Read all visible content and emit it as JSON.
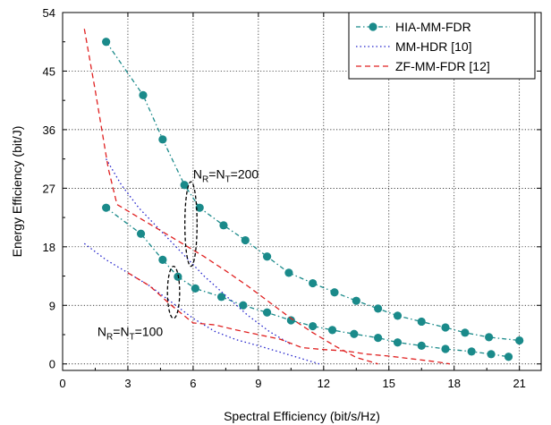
{
  "chart_data": {
    "type": "line",
    "xlabel": "Spectral Efficiency (bit/s/Hz)",
    "ylabel": "Energy Efficiency (bit/J)",
    "xlim": [
      0,
      22
    ],
    "ylim": [
      -1,
      54
    ],
    "xticks": [
      0,
      3,
      6,
      9,
      12,
      15,
      18,
      21
    ],
    "yticks": [
      0,
      9,
      18,
      27,
      36,
      45,
      54
    ],
    "grid": true,
    "legend_position": "top-right",
    "series": [
      {
        "name": "HIA-MM-FDR",
        "color": "#1a8a8a",
        "dash": "dashdot",
        "marker": "circle",
        "x": [
          2.0,
          3.7,
          4.6,
          5.6,
          6.3,
          7.4,
          8.4,
          9.4,
          10.4,
          11.5,
          12.5,
          13.5,
          14.5,
          15.4,
          16.5,
          17.6,
          18.5,
          19.6,
          21.0
        ],
        "y": [
          49.5,
          41.3,
          34.5,
          27.5,
          24.0,
          21.3,
          19.0,
          16.5,
          14.0,
          12.4,
          11.0,
          9.7,
          8.5,
          7.4,
          6.5,
          5.6,
          4.8,
          4.1,
          3.6
        ]
      },
      {
        "name": "",
        "color": "#1a8a8a",
        "dash": "dashdot",
        "marker": "circle",
        "x": [
          2.0,
          3.6,
          4.6,
          5.3,
          6.1,
          7.3,
          8.3,
          9.4,
          10.5,
          11.5,
          12.4,
          13.4,
          14.5,
          15.4,
          16.5,
          17.6,
          18.8,
          19.7,
          20.5
        ],
        "y": [
          24.0,
          20.0,
          16.0,
          13.4,
          11.6,
          10.3,
          9.0,
          7.9,
          6.7,
          5.8,
          5.2,
          4.6,
          4.0,
          3.3,
          2.8,
          2.3,
          1.9,
          1.5,
          1.1
        ]
      },
      {
        "name": "MM-HDR [10]",
        "color": "#2323cc",
        "dash": "dot",
        "marker": "none",
        "x": [
          2.0,
          2.7,
          3.5,
          4.5,
          5.5,
          6.5,
          7.5,
          8.5,
          9.5,
          10.5
        ],
        "y": [
          31.5,
          27.5,
          24.0,
          20.5,
          17.0,
          13.5,
          10.5,
          7.5,
          5.0,
          3.0
        ]
      },
      {
        "name": "",
        "color": "#2323cc",
        "dash": "dot",
        "marker": "none",
        "x": [
          1.0,
          2.0,
          3.0,
          4.0,
          5.0,
          6.0,
          7.0,
          8.0,
          9.0,
          10.0,
          11.0,
          11.8
        ],
        "y": [
          18.5,
          16.0,
          14.0,
          12.0,
          9.5,
          7.0,
          5.0,
          3.7,
          2.8,
          1.8,
          0.8,
          0.0
        ]
      },
      {
        "name": "ZF-MM-FDR [12]",
        "color": "#e02020",
        "dash": "dash",
        "marker": "none",
        "x": [
          1.0,
          1.5,
          2.1,
          2.5,
          3.5,
          4.5,
          5.5,
          6.5,
          7.5,
          8.5,
          9.5,
          10.5,
          11.5,
          12.5,
          13.5,
          14.5
        ],
        "y": [
          51.5,
          42.0,
          30.0,
          24.5,
          22.5,
          20.5,
          18.5,
          16.5,
          14.3,
          12.0,
          9.5,
          7.0,
          4.8,
          2.8,
          1.0,
          0.0
        ]
      },
      {
        "name": "",
        "color": "#e02020",
        "dash": "dash",
        "marker": "none",
        "x": [
          3.0,
          4.0,
          5.0,
          6.0,
          7.0,
          8.0,
          9.0,
          10.0,
          11.0,
          12.0,
          13.0,
          14.0,
          15.0,
          16.0,
          17.0,
          17.8
        ],
        "y": [
          14.0,
          12.0,
          9.0,
          6.3,
          6.0,
          5.2,
          4.5,
          3.8,
          2.5,
          2.2,
          2.0,
          1.5,
          1.2,
          0.8,
          0.4,
          0.0
        ]
      }
    ],
    "annotations": [
      {
        "id": "n200",
        "text_pre": "N",
        "sub1": "R",
        "text_mid": "=N",
        "sub2": "T",
        "text_post": "=200",
        "x": 6.0,
        "y": 28.5
      },
      {
        "id": "n100",
        "text_pre": "N",
        "sub1": "R",
        "text_mid": "=N",
        "sub2": "T",
        "text_post": "=100",
        "x": 1.6,
        "y": 4.3
      }
    ],
    "ellipses": [
      {
        "cx": 5.9,
        "cy": 21.5,
        "rx": 0.28,
        "ry": 6.5
      },
      {
        "cx": 5.1,
        "cy": 11.0,
        "rx": 0.28,
        "ry": 4.0
      }
    ]
  }
}
